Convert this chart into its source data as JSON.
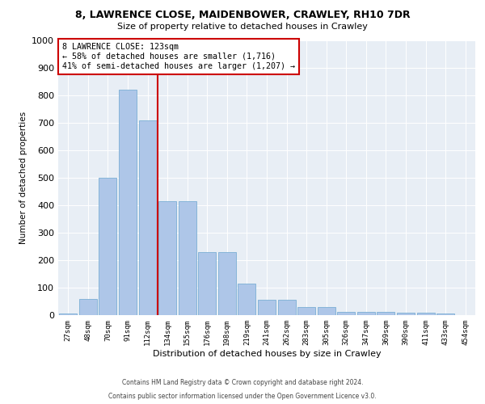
{
  "title1": "8, LAWRENCE CLOSE, MAIDENBOWER, CRAWLEY, RH10 7DR",
  "title2": "Size of property relative to detached houses in Crawley",
  "xlabel": "Distribution of detached houses by size in Crawley",
  "ylabel": "Number of detached properties",
  "categories": [
    "27sqm",
    "48sqm",
    "70sqm",
    "91sqm",
    "112sqm",
    "134sqm",
    "155sqm",
    "176sqm",
    "198sqm",
    "219sqm",
    "241sqm",
    "262sqm",
    "283sqm",
    "305sqm",
    "326sqm",
    "347sqm",
    "369sqm",
    "390sqm",
    "411sqm",
    "433sqm",
    "454sqm"
  ],
  "values": [
    5,
    60,
    500,
    820,
    710,
    415,
    415,
    228,
    228,
    115,
    55,
    55,
    30,
    30,
    12,
    12,
    12,
    10,
    10,
    5,
    0
  ],
  "bar_color": "#aec6e8",
  "bar_edge_color": "#7aafd4",
  "vline_color": "#cc0000",
  "annotation_text": "8 LAWRENCE CLOSE: 123sqm\n← 58% of detached houses are smaller (1,716)\n41% of semi-detached houses are larger (1,207) →",
  "annotation_box_color": "#ffffff",
  "annotation_box_edge_color": "#cc0000",
  "ylim": [
    0,
    1000
  ],
  "yticks": [
    0,
    100,
    200,
    300,
    400,
    500,
    600,
    700,
    800,
    900,
    1000
  ],
  "bg_color": "#e8eef5",
  "footer1": "Contains HM Land Registry data © Crown copyright and database right 2024.",
  "footer2": "Contains public sector information licensed under the Open Government Licence v3.0."
}
